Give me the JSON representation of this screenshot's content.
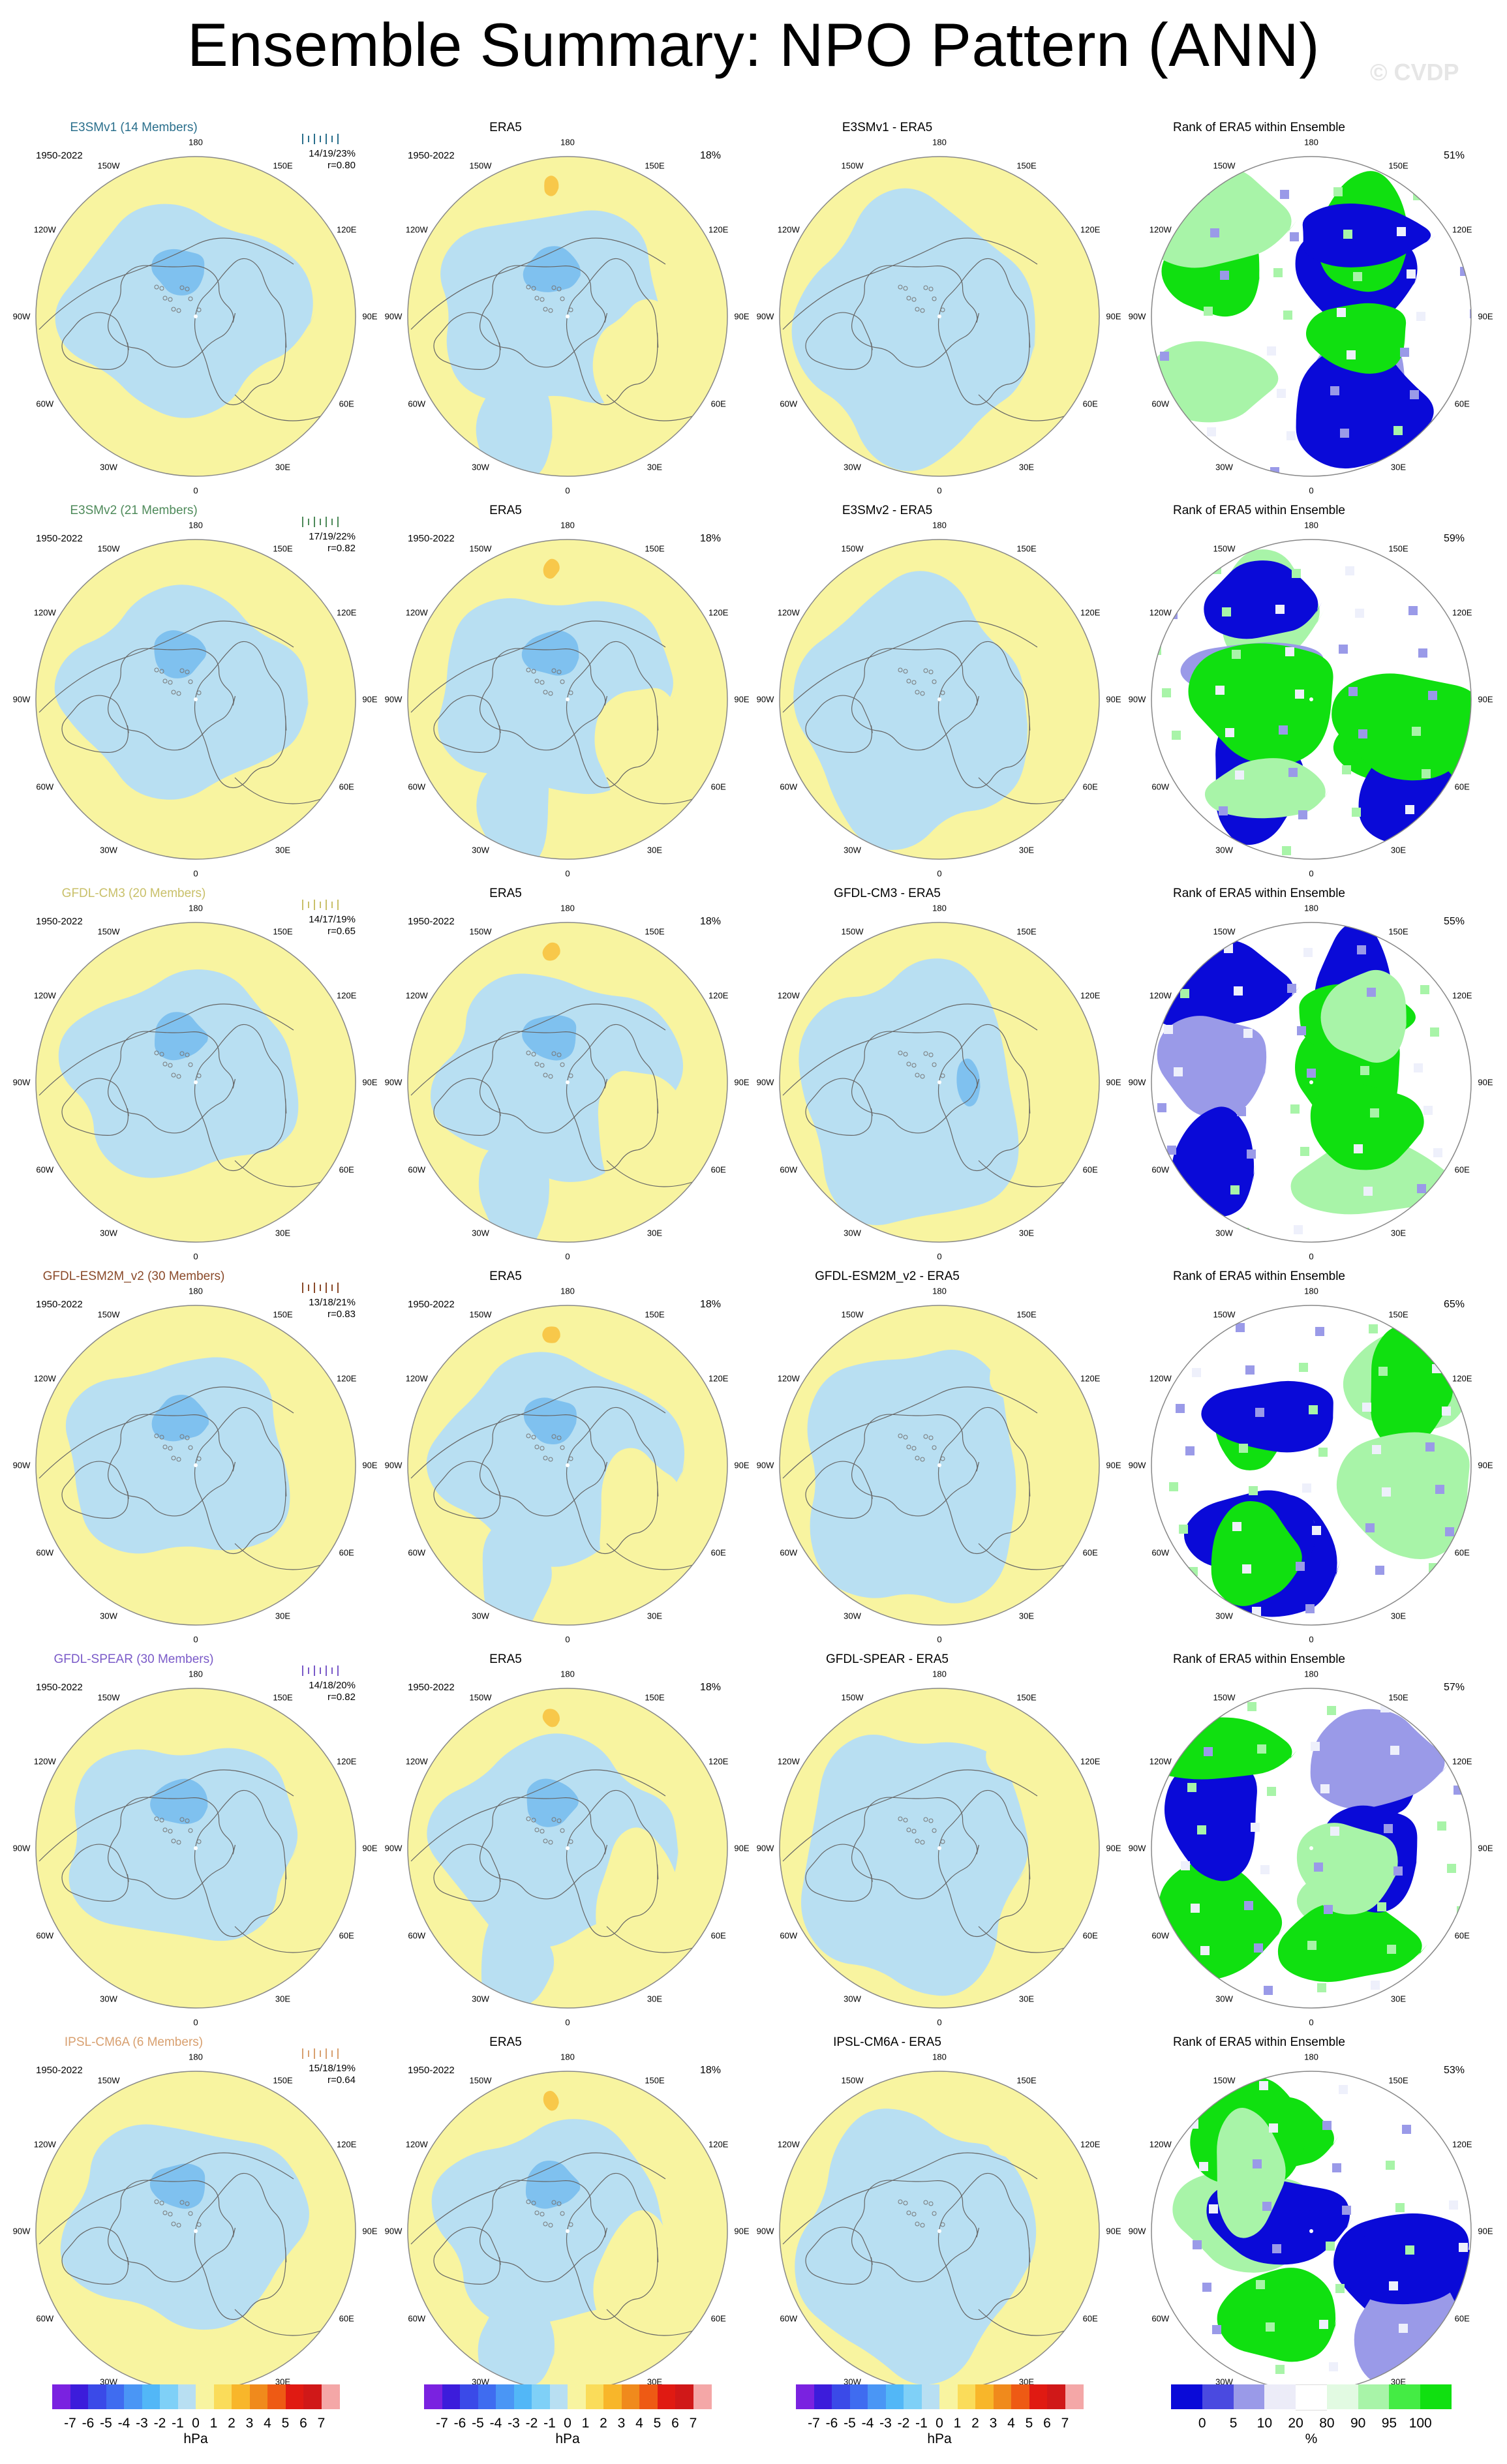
{
  "title": "Ensemble Summary: NPO Pattern (ANN)",
  "copyright": "© CVDP",
  "period": "1950-2022",
  "obs_name": "ERA5",
  "obs_pct": "18%",
  "lon_labels": [
    "180",
    "150E",
    "120E",
    "90E",
    "60E",
    "30E",
    "0",
    "30W",
    "60W",
    "90W",
    "120W",
    "150W"
  ],
  "rank_title": "Rank of ERA5 within Ensemble",
  "rows": [
    {
      "model": "E3SMv1 (14 Members)",
      "color": "#2a6f8c",
      "stats": "14/19/23%",
      "r": "r=0.80",
      "diff_title": "E3SMv1 - ERA5",
      "rank_pct": "51%"
    },
    {
      "model": "E3SMv2 (21 Members)",
      "color": "#4e8a5a",
      "stats": "17/19/22%",
      "r": "r=0.82",
      "diff_title": "E3SMv2 - ERA5",
      "rank_pct": "59%"
    },
    {
      "model": "GFDL-CM3 (20 Members)",
      "color": "#c9c06a",
      "stats": "14/17/19%",
      "r": "r=0.65",
      "diff_title": "GFDL-CM3 - ERA5",
      "rank_pct": "55%"
    },
    {
      "model": "GFDL-ESM2M_v2 (30 Members)",
      "color": "#8a4a2a",
      "stats": "13/18/21%",
      "r": "r=0.83",
      "diff_title": "GFDL-ESM2M_v2 - ERA5",
      "rank_pct": "65%"
    },
    {
      "model": "GFDL-SPEAR (30 Members)",
      "color": "#7a5ac8",
      "stats": "14/18/20%",
      "r": "r=0.82",
      "diff_title": "GFDL-SPEAR - ERA5",
      "rank_pct": "57%"
    },
    {
      "model": "IPSL-CM6A (6 Members)",
      "color": "#d8a070",
      "stats": "15/18/19%",
      "r": "r=0.64",
      "diff_title": "IPSL-CM6A - ERA5",
      "rank_pct": "53%"
    }
  ],
  "colorbar_hpa": {
    "ticks": [
      "-7",
      "-6",
      "-5",
      "-4",
      "-3",
      "-2",
      "-1",
      "0",
      "1",
      "2",
      "3",
      "4",
      "5",
      "6",
      "7"
    ],
    "units": "hPa",
    "colors": [
      "#7a22e0",
      "#3c1cdb",
      "#3a4ae8",
      "#3f6cf0",
      "#4a96f5",
      "#52b7f7",
      "#7fd0f7",
      "#b8dff2",
      "#f8f4a0",
      "#fadc5a",
      "#f8b62a",
      "#f08a1c",
      "#ee5a14",
      "#e01a12",
      "#d01818",
      "#f4a7a7"
    ]
  },
  "colorbar_rank": {
    "ticks": [
      "0",
      "5",
      "10",
      "20",
      "80",
      "90",
      "95",
      "100"
    ],
    "units": "%",
    "colors": [
      "#0a0ad8",
      "#4a4ae0",
      "#9a9ae8",
      "#ececf8",
      "#ffffff",
      "#e2fae2",
      "#a8f4a8",
      "#44ec44",
      "#10e010"
    ]
  }
}
